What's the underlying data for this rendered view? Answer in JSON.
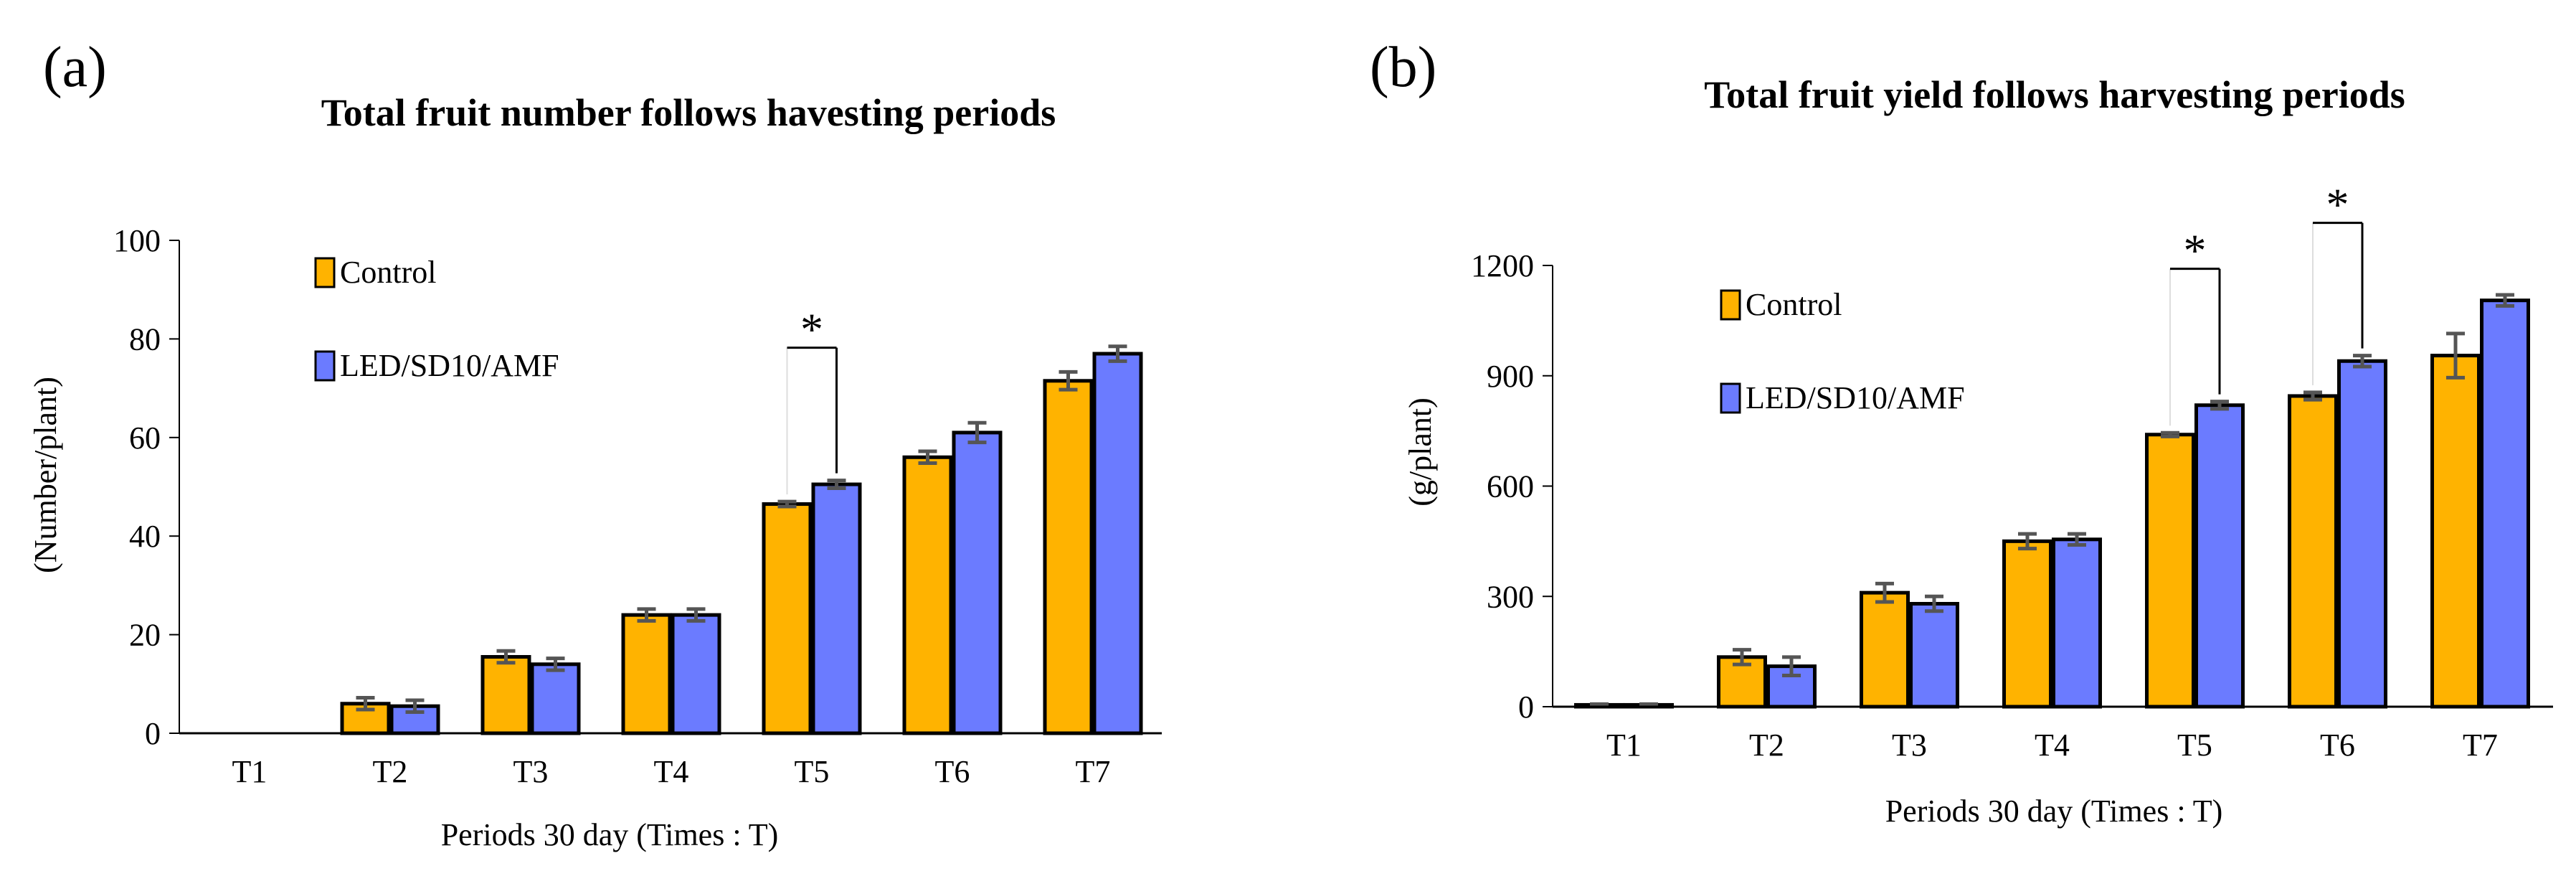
{
  "colors": {
    "control": "#FFB300",
    "treatment": "#6B7BFF",
    "error_bar": "#555555",
    "outline": "#000000"
  },
  "chart_data": [
    {
      "type": "bar",
      "panel_label": "(a)",
      "title": "Total fruit number follows havesting periods",
      "xlabel": "Periods 30 day (Times : T)",
      "ylabel": "(Number/plant)",
      "categories": [
        "T1",
        "T2",
        "T3",
        "T4",
        "T5",
        "T6",
        "T7"
      ],
      "ylim": [
        0,
        100
      ],
      "yticks": [
        0,
        20,
        40,
        60,
        80,
        100
      ],
      "grid": false,
      "legend_position": "top-left",
      "series": [
        {
          "name": "Control",
          "color": "#FFB300",
          "values": [
            0,
            6,
            15.5,
            24,
            46.5,
            56,
            71.5
          ],
          "errors": [
            0,
            1.2,
            1.2,
            1.2,
            0.5,
            1.2,
            1.8
          ]
        },
        {
          "name": "LED/SD10/AMF",
          "color": "#6B7BFF",
          "values": [
            0,
            5.5,
            14,
            24,
            50.5,
            61,
            77
          ],
          "errors": [
            0,
            1.2,
            1.2,
            1.2,
            0.8,
            2.0,
            1.5
          ]
        }
      ],
      "significance": [
        {
          "category": "T5",
          "label": "*"
        }
      ]
    },
    {
      "type": "bar",
      "panel_label": "(b)",
      "title": "Total fruit yield follows harvesting periods",
      "xlabel": "Periods 30 day (Times : T)",
      "ylabel": "(g/plant)",
      "categories": [
        "T1",
        "T2",
        "T3",
        "T4",
        "T5",
        "T6",
        "T7"
      ],
      "ylim": [
        0,
        1200
      ],
      "yticks": [
        0,
        300,
        600,
        900,
        1200
      ],
      "grid": false,
      "legend_position": "top-left",
      "series": [
        {
          "name": "Control",
          "color": "#FFB300",
          "values": [
            5,
            135,
            310,
            450,
            740,
            845,
            955
          ],
          "errors": [
            2,
            20,
            25,
            20,
            5,
            10,
            60
          ]
        },
        {
          "name": "LED/SD10/AMF",
          "color": "#6B7BFF",
          "values": [
            5,
            110,
            280,
            455,
            820,
            940,
            1105
          ],
          "errors": [
            2,
            25,
            20,
            15,
            10,
            15,
            15
          ]
        }
      ],
      "significance": [
        {
          "category": "T5",
          "label": "*"
        },
        {
          "category": "T6",
          "label": "*"
        }
      ]
    }
  ]
}
